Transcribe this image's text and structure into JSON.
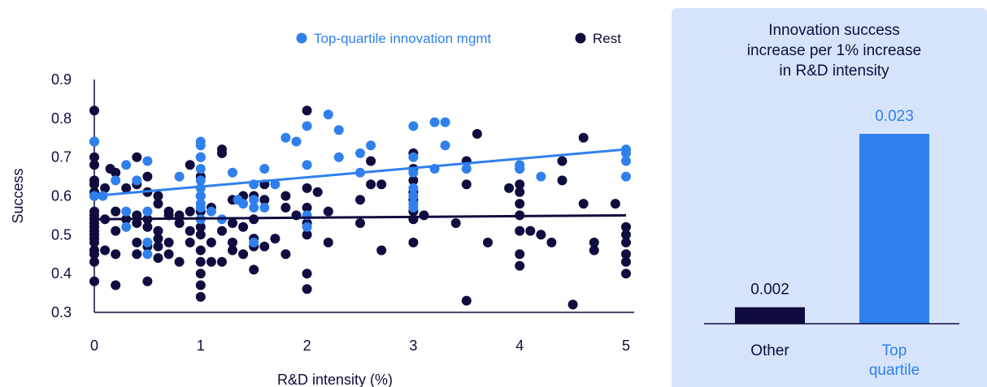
{
  "colors": {
    "top": "#2f80ed",
    "rest": "#0f0c3f",
    "axis": "#0f0c3f",
    "panel": "#d6e4fb",
    "text": "#0f0c3f"
  },
  "chart_data": [
    {
      "type": "scatter",
      "title": "",
      "xlabel": "R&D intensity (%)",
      "ylabel": "Success",
      "xlim": [
        0,
        5
      ],
      "ylim": [
        0.3,
        0.9
      ],
      "xticks": [
        "0",
        "1",
        "2",
        "3",
        "4",
        "5"
      ],
      "yticks": [
        "0.3",
        "0.4",
        "0.5",
        "0.6",
        "0.7",
        "0.8",
        "0.9"
      ],
      "legend": {
        "position": "top-right",
        "items": [
          "Top-quartile innovation mgmt",
          "Rest"
        ]
      },
      "series": [
        {
          "name": "Top-quartile innovation mgmt",
          "color": "#2f80ed",
          "trend": [
            [
              0,
              0.6
            ],
            [
              5,
              0.72
            ]
          ],
          "points": [
            [
              0,
              0.74
            ],
            [
              0,
              0.6
            ],
            [
              0.08,
              0.6
            ],
            [
              0.2,
              0.64
            ],
            [
              0.3,
              0.52
            ],
            [
              0.3,
              0.56
            ],
            [
              0.3,
              0.68
            ],
            [
              0.4,
              0.64
            ],
            [
              0.5,
              0.48
            ],
            [
              0.5,
              0.45
            ],
            [
              0.5,
              0.56
            ],
            [
              0.5,
              0.69
            ],
            [
              0.8,
              0.65
            ],
            [
              1,
              0.74
            ],
            [
              1,
              0.73
            ],
            [
              1,
              0.7
            ],
            [
              1,
              0.67
            ],
            [
              1,
              0.64
            ],
            [
              1,
              0.62
            ],
            [
              1,
              0.6
            ],
            [
              1,
              0.58
            ],
            [
              1,
              0.57
            ],
            [
              1,
              0.54
            ],
            [
              1.1,
              0.56
            ],
            [
              1.2,
              0.54
            ],
            [
              1.3,
              0.66
            ],
            [
              1.35,
              0.59
            ],
            [
              1.4,
              0.58
            ],
            [
              1.5,
              0.57
            ],
            [
              1.5,
              0.59
            ],
            [
              1.5,
              0.63
            ],
            [
              1.6,
              0.57
            ],
            [
              1.6,
              0.67
            ],
            [
              1.7,
              0.63
            ],
            [
              1.5,
              0.48
            ],
            [
              1.8,
              0.75
            ],
            [
              1.9,
              0.74
            ],
            [
              2,
              0.78
            ],
            [
              2,
              0.68
            ],
            [
              2,
              0.55
            ],
            [
              2,
              0.52
            ],
            [
              2.2,
              0.81
            ],
            [
              2.3,
              0.7
            ],
            [
              2.3,
              0.77
            ],
            [
              2.5,
              0.66
            ],
            [
              2.5,
              0.71
            ],
            [
              2.6,
              0.73
            ],
            [
              3,
              0.78
            ],
            [
              3,
              0.7
            ],
            [
              3,
              0.66
            ],
            [
              3,
              0.62
            ],
            [
              3,
              0.6
            ],
            [
              3,
              0.58
            ],
            [
              3,
              0.57
            ],
            [
              3.2,
              0.67
            ],
            [
              3.2,
              0.79
            ],
            [
              3.3,
              0.79
            ],
            [
              3.3,
              0.73
            ],
            [
              3.5,
              0.67
            ],
            [
              4,
              0.67
            ],
            [
              4,
              0.68
            ],
            [
              4.2,
              0.65
            ],
            [
              5,
              0.72
            ],
            [
              5,
              0.71
            ],
            [
              5,
              0.69
            ],
            [
              5,
              0.65
            ]
          ]
        },
        {
          "name": "Rest",
          "color": "#0f0c3f",
          "trend": [
            [
              0,
              0.54
            ],
            [
              5,
              0.55
            ]
          ],
          "points": [
            [
              0,
              0.82
            ],
            [
              0,
              0.74
            ],
            [
              0,
              0.7
            ],
            [
              0,
              0.68
            ],
            [
              0,
              0.64
            ],
            [
              0,
              0.63
            ],
            [
              0,
              0.61
            ],
            [
              0,
              0.6
            ],
            [
              0,
              0.56
            ],
            [
              0,
              0.55
            ],
            [
              0,
              0.54
            ],
            [
              0,
              0.53
            ],
            [
              0,
              0.52
            ],
            [
              0,
              0.51
            ],
            [
              0,
              0.5
            ],
            [
              0,
              0.49
            ],
            [
              0,
              0.48
            ],
            [
              0,
              0.46
            ],
            [
              0,
              0.45
            ],
            [
              0,
              0.43
            ],
            [
              0,
              0.38
            ],
            [
              0.1,
              0.62
            ],
            [
              0.1,
              0.54
            ],
            [
              0.1,
              0.46
            ],
            [
              0.15,
              0.67
            ],
            [
              0.2,
              0.66
            ],
            [
              0.2,
              0.56
            ],
            [
              0.2,
              0.51
            ],
            [
              0.2,
              0.45
            ],
            [
              0.2,
              0.37
            ],
            [
              0.3,
              0.62
            ],
            [
              0.3,
              0.54
            ],
            [
              0.4,
              0.7
            ],
            [
              0.4,
              0.63
            ],
            [
              0.4,
              0.55
            ],
            [
              0.4,
              0.53
            ],
            [
              0.4,
              0.48
            ],
            [
              0.4,
              0.45
            ],
            [
              0.5,
              0.65
            ],
            [
              0.5,
              0.61
            ],
            [
              0.5,
              0.54
            ],
            [
              0.5,
              0.52
            ],
            [
              0.5,
              0.47
            ],
            [
              0.5,
              0.38
            ],
            [
              0.6,
              0.6
            ],
            [
              0.6,
              0.58
            ],
            [
              0.6,
              0.51
            ],
            [
              0.6,
              0.49
            ],
            [
              0.6,
              0.47
            ],
            [
              0.6,
              0.44
            ],
            [
              0.7,
              0.56
            ],
            [
              0.7,
              0.55
            ],
            [
              0.7,
              0.48
            ],
            [
              0.7,
              0.45
            ],
            [
              0.8,
              0.55
            ],
            [
              0.8,
              0.53
            ],
            [
              0.8,
              0.43
            ],
            [
              0.9,
              0.68
            ],
            [
              0.9,
              0.56
            ],
            [
              0.9,
              0.51
            ],
            [
              0.9,
              0.48
            ],
            [
              1,
              0.7
            ],
            [
              1,
              0.65
            ],
            [
              1,
              0.6
            ],
            [
              1,
              0.56
            ],
            [
              1,
              0.54
            ],
            [
              1,
              0.52
            ],
            [
              1,
              0.5
            ],
            [
              1,
              0.46
            ],
            [
              1,
              0.43
            ],
            [
              1,
              0.4
            ],
            [
              1,
              0.37
            ],
            [
              1,
              0.34
            ],
            [
              1.1,
              0.57
            ],
            [
              1.1,
              0.48
            ],
            [
              1.1,
              0.43
            ],
            [
              1.2,
              0.71
            ],
            [
              1.2,
              0.72
            ],
            [
              1.2,
              0.51
            ],
            [
              1.2,
              0.43
            ],
            [
              1.3,
              0.59
            ],
            [
              1.3,
              0.53
            ],
            [
              1.3,
              0.48
            ],
            [
              1.3,
              0.46
            ],
            [
              1.4,
              0.6
            ],
            [
              1.4,
              0.52
            ],
            [
              1.4,
              0.45
            ],
            [
              1.5,
              0.6
            ],
            [
              1.5,
              0.54
            ],
            [
              1.5,
              0.49
            ],
            [
              1.5,
              0.47
            ],
            [
              1.5,
              0.41
            ],
            [
              1.6,
              0.63
            ],
            [
              1.6,
              0.59
            ],
            [
              1.6,
              0.47
            ],
            [
              1.7,
              0.49
            ],
            [
              1.8,
              0.6
            ],
            [
              1.8,
              0.57
            ],
            [
              1.8,
              0.45
            ],
            [
              1.9,
              0.55
            ],
            [
              2,
              0.82
            ],
            [
              2,
              0.62
            ],
            [
              2,
              0.57
            ],
            [
              2,
              0.53
            ],
            [
              2,
              0.5
            ],
            [
              2,
              0.4
            ],
            [
              2,
              0.36
            ],
            [
              2.1,
              0.61
            ],
            [
              2.2,
              0.56
            ],
            [
              2.2,
              0.48
            ],
            [
              2.5,
              0.59
            ],
            [
              2.5,
              0.53
            ],
            [
              2.6,
              0.69
            ],
            [
              2.6,
              0.63
            ],
            [
              2.7,
              0.63
            ],
            [
              2.7,
              0.46
            ],
            [
              3,
              0.71
            ],
            [
              3,
              0.67
            ],
            [
              3,
              0.64
            ],
            [
              3,
              0.61
            ],
            [
              3,
              0.59
            ],
            [
              3,
              0.56
            ],
            [
              3,
              0.54
            ],
            [
              3,
              0.48
            ],
            [
              3.1,
              0.55
            ],
            [
              3.4,
              0.53
            ],
            [
              3.5,
              0.69
            ],
            [
              3.5,
              0.63
            ],
            [
              3.5,
              0.33
            ],
            [
              3.6,
              0.76
            ],
            [
              3.7,
              0.48
            ],
            [
              3.9,
              0.62
            ],
            [
              4,
              0.67
            ],
            [
              4,
              0.63
            ],
            [
              4,
              0.61
            ],
            [
              4,
              0.58
            ],
            [
              4,
              0.55
            ],
            [
              4,
              0.51
            ],
            [
              4,
              0.45
            ],
            [
              4,
              0.42
            ],
            [
              4.1,
              0.51
            ],
            [
              4.2,
              0.5
            ],
            [
              4.3,
              0.48
            ],
            [
              4.4,
              0.64
            ],
            [
              4.4,
              0.69
            ],
            [
              4.5,
              0.32
            ],
            [
              4.6,
              0.75
            ],
            [
              4.6,
              0.58
            ],
            [
              4.7,
              0.48
            ],
            [
              4.7,
              0.46
            ],
            [
              4.9,
              0.58
            ],
            [
              5,
              0.52
            ],
            [
              5,
              0.5
            ],
            [
              5,
              0.48
            ],
            [
              5,
              0.45
            ],
            [
              5,
              0.43
            ],
            [
              5,
              0.4
            ]
          ]
        }
      ]
    },
    {
      "type": "bar",
      "title": "Innovation success increase per 1% increase in R&D intensity",
      "title_lines": [
        "Innovation success",
        "increase per 1% increase",
        "in R&D intensity"
      ],
      "categories": [
        "Other",
        "Top quartile"
      ],
      "category_lines": [
        [
          "Other"
        ],
        [
          "Top",
          "quartile"
        ]
      ],
      "values": [
        0.002,
        0.023
      ],
      "value_labels": [
        "0.002",
        "0.023"
      ],
      "colors": [
        "#0f0c3f",
        "#2f80ed"
      ],
      "ylim": [
        0,
        0.023
      ]
    }
  ]
}
